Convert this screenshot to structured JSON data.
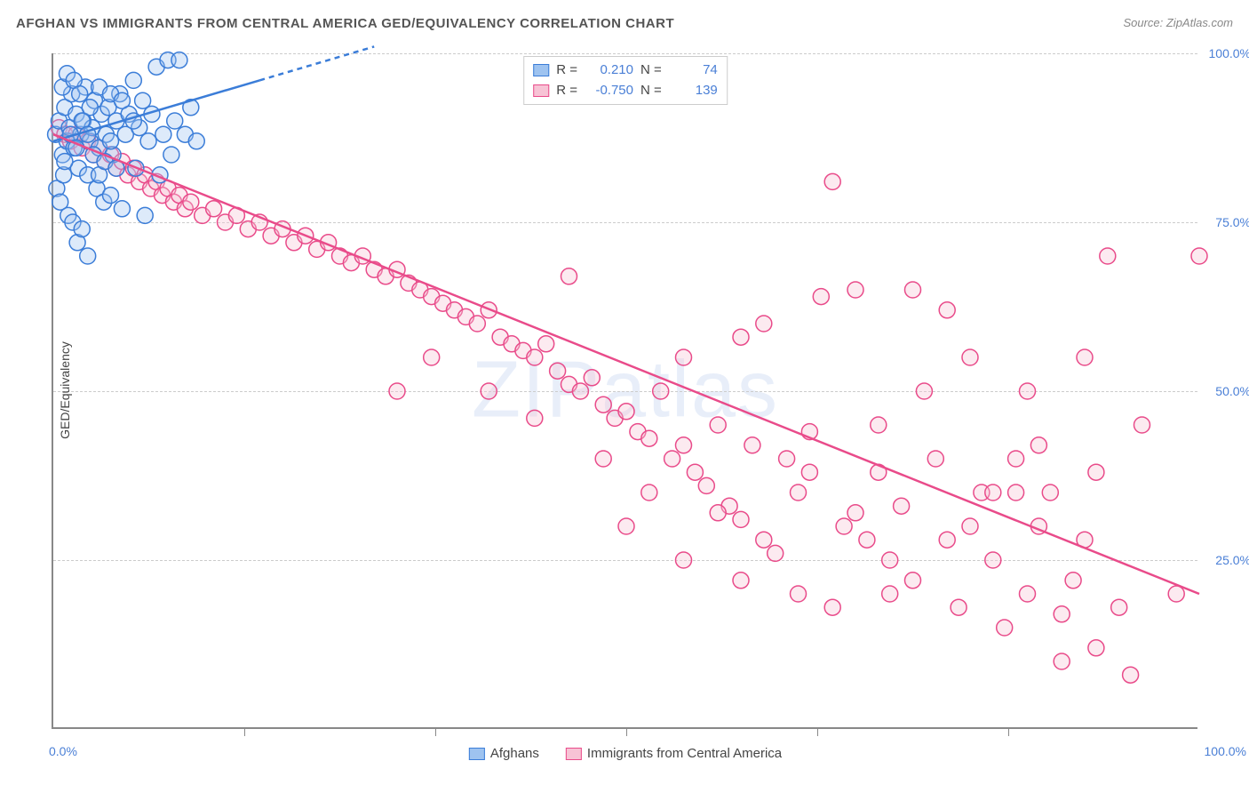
{
  "title": "AFGHAN VS IMMIGRANTS FROM CENTRAL AMERICA GED/EQUIVALENCY CORRELATION CHART",
  "source": "Source: ZipAtlas.com",
  "watermark": "ZIPatlas",
  "y_axis_label": "GED/Equivalency",
  "xlim": [
    0,
    100
  ],
  "ylim": [
    0,
    100
  ],
  "y_ticks": [
    25,
    50,
    75,
    100
  ],
  "y_tick_labels": [
    "25.0%",
    "50.0%",
    "75.0%",
    "100.0%"
  ],
  "x_tick_labels": {
    "min": "0.0%",
    "max": "100.0%"
  },
  "grid_color": "#cccccc",
  "axis_color": "#888888",
  "tick_text_color": "#4a7fd6",
  "background_color": "#ffffff",
  "series": {
    "afghans": {
      "label": "Afghans",
      "color_fill": "#9ec3f0",
      "color_stroke": "#3b7dd8",
      "R": "0.210",
      "N": "74",
      "marker_radius": 9,
      "trend": {
        "x1": 0,
        "y1": 87,
        "x2": 18,
        "y2": 96,
        "dash_x2": 28,
        "dash_y2": 101
      },
      "points": [
        [
          0.2,
          88
        ],
        [
          0.5,
          90
        ],
        [
          0.8,
          85
        ],
        [
          1.0,
          92
        ],
        [
          1.2,
          87
        ],
        [
          1.4,
          89
        ],
        [
          1.6,
          94
        ],
        [
          1.8,
          86
        ],
        [
          2.0,
          91
        ],
        [
          2.2,
          83
        ],
        [
          2.4,
          88
        ],
        [
          2.6,
          90
        ],
        [
          2.8,
          95
        ],
        [
          3.0,
          82
        ],
        [
          3.2,
          87
        ],
        [
          3.4,
          89
        ],
        [
          3.6,
          93
        ],
        [
          3.8,
          80
        ],
        [
          4.0,
          86
        ],
        [
          4.2,
          91
        ],
        [
          4.4,
          78
        ],
        [
          4.6,
          88
        ],
        [
          4.8,
          92
        ],
        [
          5.0,
          79
        ],
        [
          5.2,
          85
        ],
        [
          5.5,
          90
        ],
        [
          5.8,
          94
        ],
        [
          6.0,
          77
        ],
        [
          6.3,
          88
        ],
        [
          6.6,
          91
        ],
        [
          7.0,
          96
        ],
        [
          7.2,
          83
        ],
        [
          7.5,
          89
        ],
        [
          7.8,
          93
        ],
        [
          8.0,
          76
        ],
        [
          8.3,
          87
        ],
        [
          8.6,
          91
        ],
        [
          9.0,
          98
        ],
        [
          9.3,
          82
        ],
        [
          9.6,
          88
        ],
        [
          10.0,
          99
        ],
        [
          10.3,
          85
        ],
        [
          10.6,
          90
        ],
        [
          11.0,
          99
        ],
        [
          11.5,
          88
        ],
        [
          12.0,
          92
        ],
        [
          12.5,
          87
        ],
        [
          0.3,
          80
        ],
        [
          0.6,
          78
        ],
        [
          0.9,
          82
        ],
        [
          1.3,
          76
        ],
        [
          1.7,
          75
        ],
        [
          2.1,
          72
        ],
        [
          2.5,
          74
        ],
        [
          3.0,
          70
        ],
        [
          1.0,
          84
        ],
        [
          1.5,
          88
        ],
        [
          2.0,
          86
        ],
        [
          2.5,
          90
        ],
        [
          3.0,
          88
        ],
        [
          3.5,
          85
        ],
        [
          4.0,
          82
        ],
        [
          4.5,
          84
        ],
        [
          5.0,
          87
        ],
        [
          5.5,
          83
        ],
        [
          0.8,
          95
        ],
        [
          1.2,
          97
        ],
        [
          1.8,
          96
        ],
        [
          2.3,
          94
        ],
        [
          3.2,
          92
        ],
        [
          4.0,
          95
        ],
        [
          5.0,
          94
        ],
        [
          6.0,
          93
        ],
        [
          7.0,
          90
        ]
      ]
    },
    "central_america": {
      "label": "Immigrants from Central America",
      "color_fill": "#f7c3d5",
      "color_stroke": "#e94b8a",
      "R": "-0.750",
      "N": "139",
      "marker_radius": 9,
      "trend": {
        "x1": 0,
        "y1": 88,
        "x2": 100,
        "y2": 20
      },
      "points": [
        [
          0.5,
          89
        ],
        [
          1,
          88
        ],
        [
          1.5,
          87
        ],
        [
          2,
          88
        ],
        [
          2.5,
          86
        ],
        [
          3,
          87
        ],
        [
          3.5,
          85
        ],
        [
          4,
          86
        ],
        [
          4.5,
          84
        ],
        [
          5,
          85
        ],
        [
          5.5,
          83
        ],
        [
          6,
          84
        ],
        [
          6.5,
          82
        ],
        [
          7,
          83
        ],
        [
          7.5,
          81
        ],
        [
          8,
          82
        ],
        [
          8.5,
          80
        ],
        [
          9,
          81
        ],
        [
          9.5,
          79
        ],
        [
          10,
          80
        ],
        [
          10.5,
          78
        ],
        [
          11,
          79
        ],
        [
          11.5,
          77
        ],
        [
          12,
          78
        ],
        [
          13,
          76
        ],
        [
          14,
          77
        ],
        [
          15,
          75
        ],
        [
          16,
          76
        ],
        [
          17,
          74
        ],
        [
          18,
          75
        ],
        [
          19,
          73
        ],
        [
          20,
          74
        ],
        [
          21,
          72
        ],
        [
          22,
          73
        ],
        [
          23,
          71
        ],
        [
          24,
          72
        ],
        [
          25,
          70
        ],
        [
          26,
          69
        ],
        [
          27,
          70
        ],
        [
          28,
          68
        ],
        [
          29,
          67
        ],
        [
          30,
          68
        ],
        [
          31,
          66
        ],
        [
          32,
          65
        ],
        [
          33,
          64
        ],
        [
          34,
          63
        ],
        [
          35,
          62
        ],
        [
          36,
          61
        ],
        [
          37,
          60
        ],
        [
          38,
          62
        ],
        [
          39,
          58
        ],
        [
          40,
          57
        ],
        [
          41,
          56
        ],
        [
          42,
          55
        ],
        [
          43,
          57
        ],
        [
          44,
          53
        ],
        [
          45,
          51
        ],
        [
          46,
          50
        ],
        [
          47,
          52
        ],
        [
          48,
          48
        ],
        [
          49,
          46
        ],
        [
          50,
          47
        ],
        [
          51,
          44
        ],
        [
          52,
          43
        ],
        [
          53,
          50
        ],
        [
          54,
          40
        ],
        [
          55,
          42
        ],
        [
          56,
          38
        ],
        [
          57,
          36
        ],
        [
          58,
          45
        ],
        [
          59,
          33
        ],
        [
          60,
          31
        ],
        [
          61,
          42
        ],
        [
          62,
          28
        ],
        [
          63,
          26
        ],
        [
          64,
          40
        ],
        [
          65,
          35
        ],
        [
          66,
          38
        ],
        [
          67,
          64
        ],
        [
          68,
          81
        ],
        [
          69,
          30
        ],
        [
          70,
          32
        ],
        [
          71,
          28
        ],
        [
          72,
          45
        ],
        [
          73,
          25
        ],
        [
          74,
          33
        ],
        [
          75,
          22
        ],
        [
          76,
          50
        ],
        [
          77,
          40
        ],
        [
          78,
          62
        ],
        [
          79,
          18
        ],
        [
          80,
          30
        ],
        [
          81,
          35
        ],
        [
          82,
          25
        ],
        [
          83,
          15
        ],
        [
          84,
          40
        ],
        [
          85,
          20
        ],
        [
          86,
          30
        ],
        [
          87,
          35
        ],
        [
          88,
          17
        ],
        [
          89,
          22
        ],
        [
          90,
          28
        ],
        [
          91,
          12
        ],
        [
          92,
          70
        ],
        [
          93,
          18
        ],
        [
          94,
          8
        ],
        [
          100,
          70
        ],
        [
          45,
          67
        ],
        [
          30,
          50
        ],
        [
          55,
          55
        ],
        [
          60,
          58
        ],
        [
          33,
          55
        ],
        [
          38,
          50
        ],
        [
          42,
          46
        ],
        [
          48,
          40
        ],
        [
          52,
          35
        ],
        [
          70,
          65
        ],
        [
          75,
          65
        ],
        [
          80,
          55
        ],
        [
          85,
          50
        ],
        [
          62,
          60
        ],
        [
          58,
          32
        ],
        [
          66,
          44
        ],
        [
          72,
          38
        ],
        [
          78,
          28
        ],
        [
          84,
          35
        ],
        [
          90,
          55
        ],
        [
          95,
          45
        ],
        [
          98,
          20
        ],
        [
          50,
          30
        ],
        [
          55,
          25
        ],
        [
          60,
          22
        ],
        [
          65,
          20
        ],
        [
          68,
          18
        ],
        [
          73,
          20
        ],
        [
          88,
          10
        ],
        [
          82,
          35
        ],
        [
          86,
          42
        ],
        [
          91,
          38
        ]
      ]
    }
  },
  "stats_labels": {
    "R": "R =",
    "N": "N ="
  }
}
